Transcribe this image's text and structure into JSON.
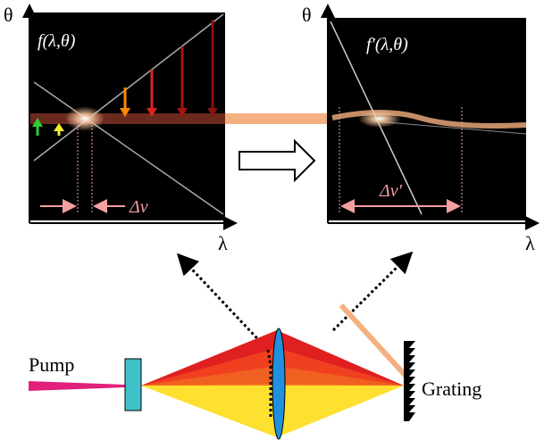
{
  "panels": [
    {
      "axis_y": "θ",
      "label": "f(λ,θ)",
      "bandwidth": "Δν",
      "axis_x": "λ"
    },
    {
      "axis_y": "θ",
      "label": "f′(λ,θ)",
      "bandwidth": "Δν′",
      "axis_x": "λ"
    }
  ],
  "pump": "Pump",
  "grating": "Grating"
}
